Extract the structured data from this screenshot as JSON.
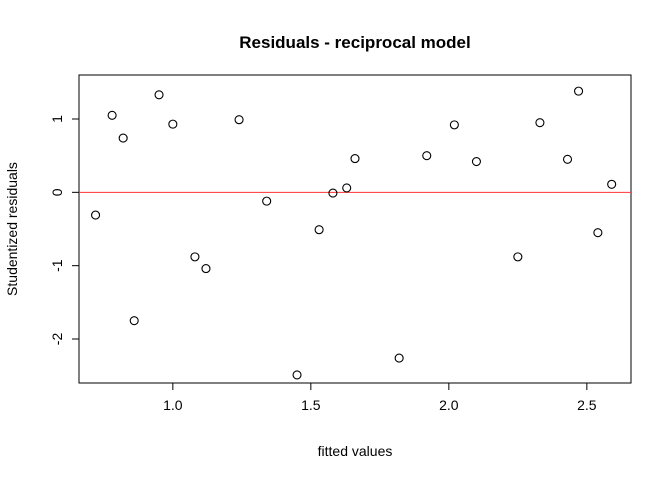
{
  "chart_data": {
    "type": "scatter",
    "title": "Residuals - reciprocal model",
    "xlabel": "fitted values",
    "ylabel": "Studentized residuals",
    "xlim": [
      0.66,
      2.66
    ],
    "ylim": [
      -2.6,
      1.6
    ],
    "x_ticks": [
      1.0,
      1.5,
      2.0,
      2.5
    ],
    "x_tick_labels": [
      "1.0",
      "1.5",
      "2.0",
      "2.5"
    ],
    "y_ticks": [
      -2,
      -1,
      0,
      1
    ],
    "y_tick_labels": [
      "-2",
      "-1",
      "0",
      "1"
    ],
    "reference_line": {
      "y": 0,
      "color": "#ff3333"
    },
    "point_style": "open-circle",
    "grid": false,
    "points": [
      {
        "x": 0.72,
        "y": -0.31
      },
      {
        "x": 0.78,
        "y": 1.05
      },
      {
        "x": 0.82,
        "y": 0.74
      },
      {
        "x": 0.86,
        "y": -1.75
      },
      {
        "x": 0.95,
        "y": 1.33
      },
      {
        "x": 1.0,
        "y": 0.93
      },
      {
        "x": 1.08,
        "y": -0.88
      },
      {
        "x": 1.12,
        "y": -1.04
      },
      {
        "x": 1.24,
        "y": 0.99
      },
      {
        "x": 1.34,
        "y": -0.12
      },
      {
        "x": 1.45,
        "y": -2.49
      },
      {
        "x": 1.53,
        "y": -0.51
      },
      {
        "x": 1.58,
        "y": -0.01
      },
      {
        "x": 1.63,
        "y": 0.06
      },
      {
        "x": 1.66,
        "y": 0.46
      },
      {
        "x": 1.82,
        "y": -2.26
      },
      {
        "x": 1.92,
        "y": 0.5
      },
      {
        "x": 2.02,
        "y": 0.92
      },
      {
        "x": 2.1,
        "y": 0.42
      },
      {
        "x": 2.25,
        "y": -0.88
      },
      {
        "x": 2.33,
        "y": 0.95
      },
      {
        "x": 2.43,
        "y": 0.45
      },
      {
        "x": 2.47,
        "y": 1.38
      },
      {
        "x": 2.54,
        "y": -0.55
      },
      {
        "x": 2.59,
        "y": 0.11
      }
    ]
  }
}
